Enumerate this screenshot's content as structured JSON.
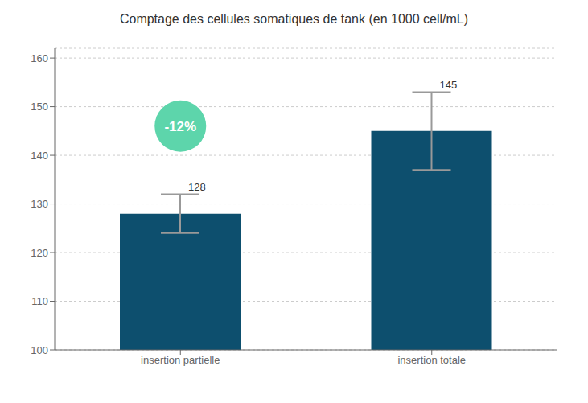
{
  "chart_data": {
    "type": "bar",
    "title": "Comptage des cellules somatiques de tank (en 1000 cell/mL)",
    "categories": [
      "insertion partielle",
      "insertion totale"
    ],
    "values": [
      128,
      145
    ],
    "err_minus": [
      4,
      8
    ],
    "err_plus": [
      4,
      8
    ],
    "color": "#0d4f6e",
    "ylim": [
      100,
      162
    ],
    "yticks": [
      100,
      110,
      120,
      130,
      140,
      150,
      160
    ],
    "grid": true,
    "data_labels": true,
    "annotations": [
      {
        "text": "-12%",
        "category": "insertion partielle",
        "y": 146,
        "color": "#5dd5ab"
      }
    ]
  }
}
